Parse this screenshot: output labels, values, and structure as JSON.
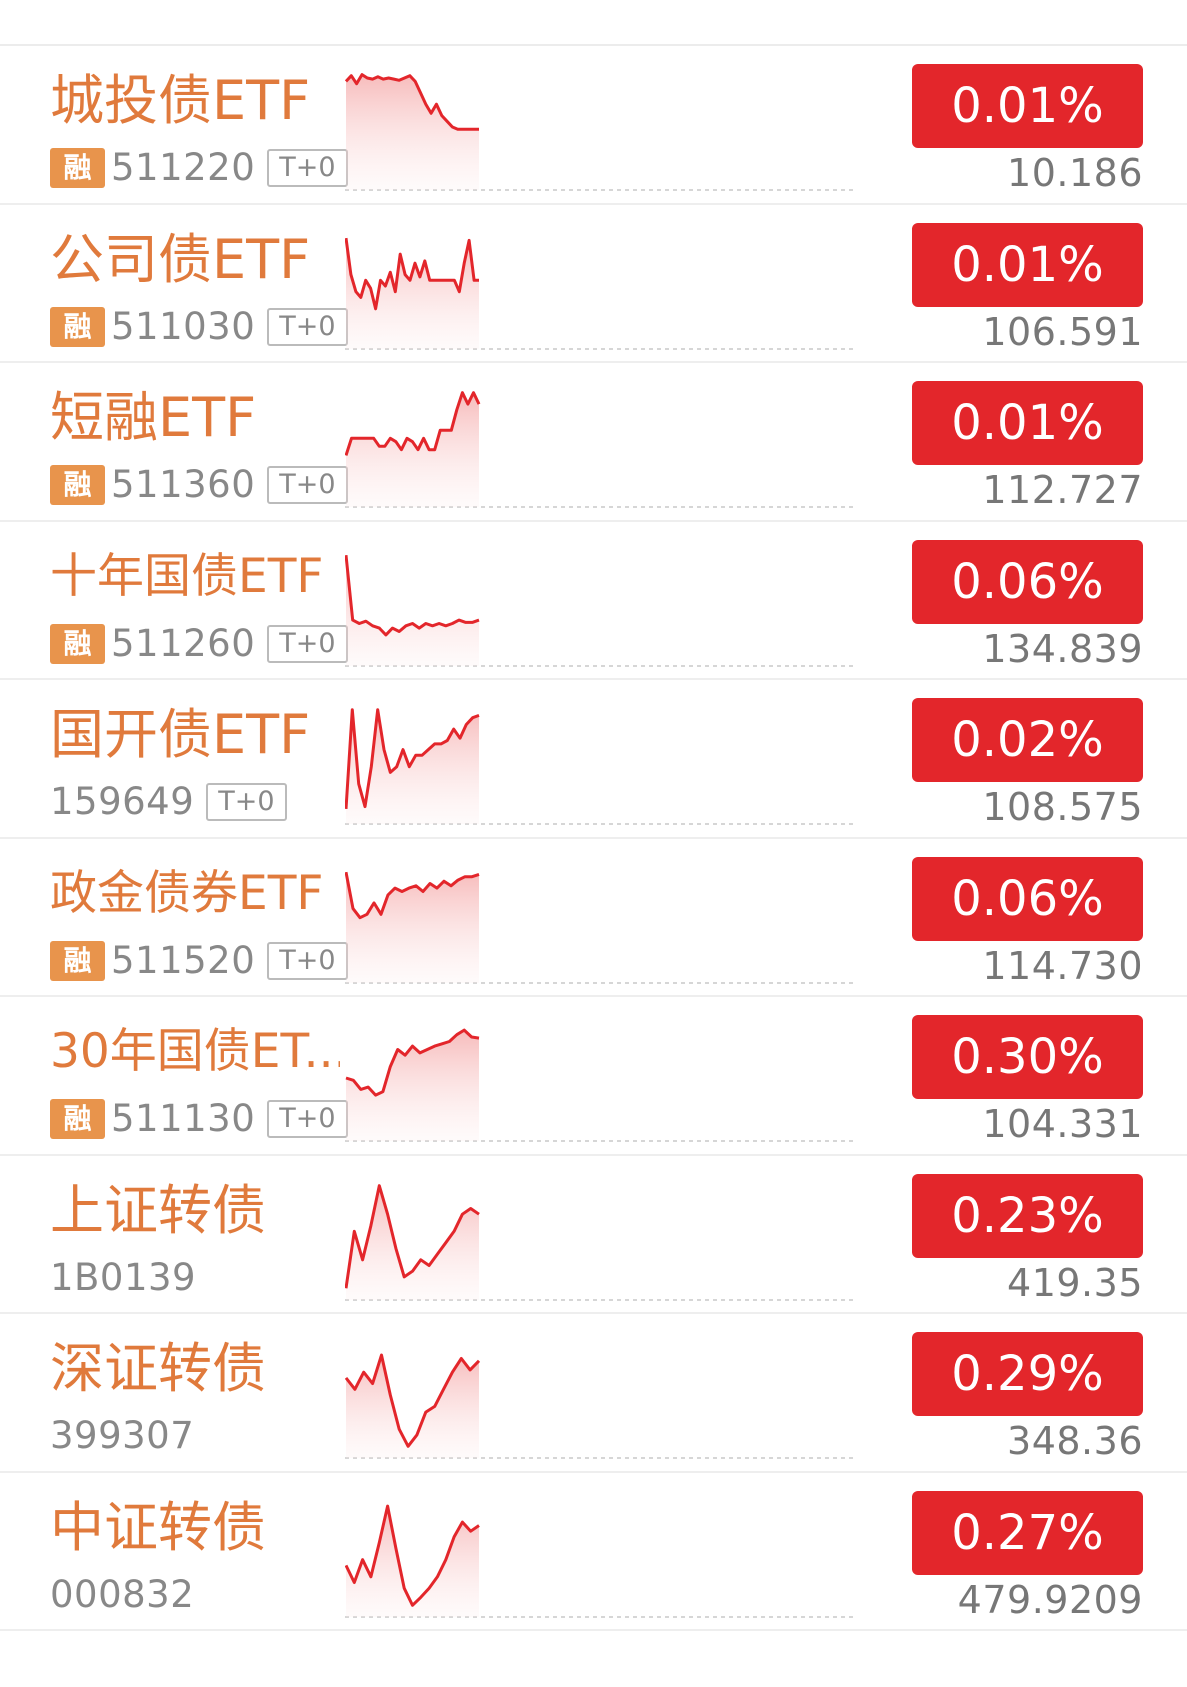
{
  "header": {
    "partial_title": ""
  },
  "colors": {
    "accent_red": "#e3262b",
    "name_orange": "#e07a3c",
    "tag_orange": "#e8944c",
    "spark_line": "#e3262b"
  },
  "items": [
    {
      "name": "城投债ETF",
      "tag": "融",
      "code": "511220",
      "t0": "T+0",
      "change": "0.01%",
      "price": "10.186",
      "spark": [
        90,
        95,
        88,
        96,
        93,
        92,
        94,
        92,
        93,
        92,
        91,
        93,
        95,
        90,
        80,
        70,
        62,
        70,
        60,
        55,
        50,
        48,
        48,
        48,
        48,
        48
      ]
    },
    {
      "name": "公司债ETF",
      "tag": "融",
      "code": "511030",
      "t0": "T+0",
      "change": "0.01%",
      "price": "106.591",
      "spark": [
        92,
        60,
        45,
        40,
        55,
        48,
        30,
        55,
        50,
        62,
        45,
        78,
        60,
        55,
        70,
        58,
        72,
        55,
        55,
        55,
        55,
        55,
        55,
        45,
        70,
        90,
        55,
        55
      ]
    },
    {
      "name": "短融ETF",
      "tag": "融",
      "code": "511360",
      "t0": "T+0",
      "change": "0.01%",
      "price": "112.727",
      "spark": [
        40,
        55,
        55,
        55,
        55,
        55,
        48,
        48,
        55,
        52,
        45,
        55,
        52,
        45,
        55,
        45,
        45,
        62,
        62,
        62,
        80,
        95,
        85,
        95,
        85
      ]
    },
    {
      "name": "十年国债ETF",
      "tag": "融",
      "code": "511260",
      "t0": "T+0",
      "change": "0.06%",
      "price": "134.839",
      "spark": [
        92,
        35,
        32,
        34,
        30,
        28,
        22,
        28,
        25,
        30,
        32,
        28,
        32,
        30,
        32,
        30,
        32,
        35,
        33,
        33,
        35
      ]
    },
    {
      "name": "国开债ETF",
      "tag": "",
      "code": "159649",
      "t0": "T+0",
      "change": "0.02%",
      "price": "108.575",
      "spark": [
        8,
        95,
        30,
        10,
        45,
        95,
        60,
        40,
        45,
        60,
        45,
        55,
        55,
        60,
        65,
        65,
        68,
        78,
        70,
        82,
        88,
        90
      ]
    },
    {
      "name": "政金债券ETF",
      "tag": "融",
      "code": "511520",
      "t0": "T+0",
      "change": "0.06%",
      "price": "114.730",
      "spark": [
        92,
        60,
        52,
        55,
        65,
        55,
        72,
        78,
        75,
        78,
        80,
        75,
        82,
        78,
        84,
        80,
        85,
        88,
        88,
        90
      ]
    },
    {
      "name": "30年国债ET...",
      "tag": "融",
      "code": "511130",
      "t0": "T+0",
      "change": "0.30%",
      "price": "104.331",
      "spark": [
        50,
        48,
        40,
        42,
        35,
        38,
        60,
        75,
        70,
        78,
        72,
        75,
        78,
        80,
        82,
        88,
        92,
        86,
        85
      ]
    },
    {
      "name": "上证转债",
      "tag": "",
      "code": "1B0139",
      "t0": "",
      "change": "0.23%",
      "price": "419.35",
      "spark": [
        5,
        55,
        30,
        60,
        95,
        70,
        40,
        15,
        20,
        30,
        25,
        35,
        45,
        55,
        70,
        75,
        70
      ]
    },
    {
      "name": "深证转债",
      "tag": "",
      "code": "399307",
      "t0": "",
      "change": "0.29%",
      "price": "348.36",
      "spark": [
        65,
        55,
        70,
        60,
        85,
        50,
        20,
        5,
        15,
        35,
        40,
        55,
        70,
        82,
        72,
        80
      ]
    },
    {
      "name": "中证转债",
      "tag": "",
      "code": "000832",
      "t0": "",
      "change": "0.27%",
      "price": "479.9209",
      "spark": [
        40,
        25,
        45,
        30,
        60,
        92,
        55,
        20,
        5,
        12,
        20,
        30,
        45,
        65,
        78,
        70,
        75
      ]
    }
  ]
}
